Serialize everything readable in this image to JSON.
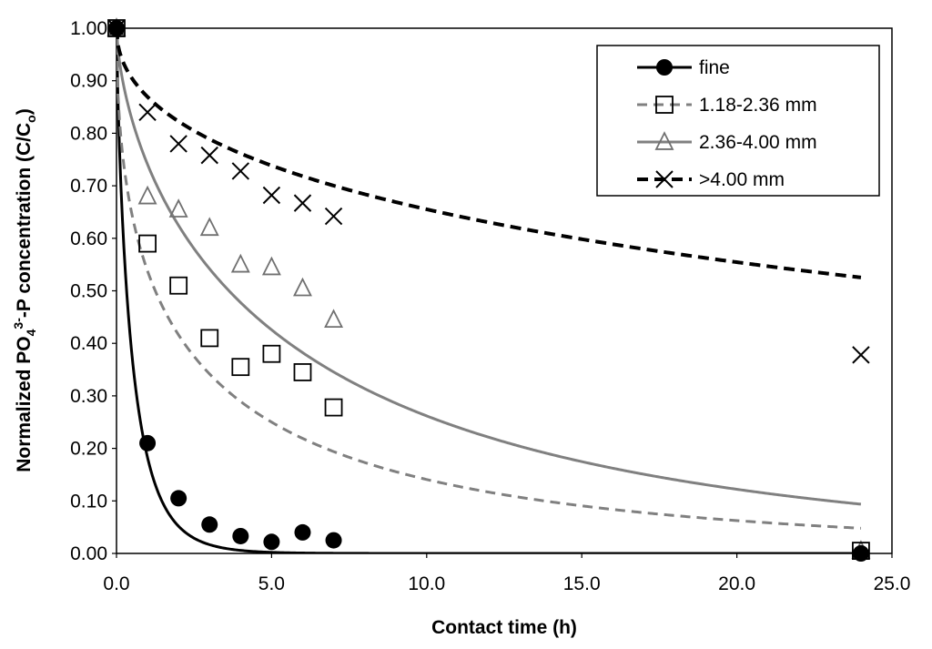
{
  "chart_data": {
    "type": "scatter",
    "title": "",
    "xlabel": "Contact time (h)",
    "ylabel": {
      "prefix": "Normalized PO",
      "sub": "4",
      "sup": "3-",
      "middle": "-P concentration (C/C",
      "sub2": "o",
      "suffix": ")"
    },
    "xlim": [
      0,
      25
    ],
    "ylim": [
      0,
      1
    ],
    "xticks": [
      "0.0",
      "5.0",
      "10.0",
      "15.0",
      "20.0",
      "25.0"
    ],
    "yticks": [
      "0.00",
      "0.10",
      "0.20",
      "0.30",
      "0.40",
      "0.50",
      "0.60",
      "0.70",
      "0.80",
      "0.90",
      "1.00"
    ],
    "grid": false,
    "legend_position": "top-right",
    "series": [
      {
        "name": "fine",
        "marker": "circle",
        "color": "#000000",
        "line_style": "solid",
        "x": [
          0,
          1,
          2,
          3,
          4,
          5,
          6,
          7,
          24
        ],
        "y": [
          1.0,
          0.21,
          0.105,
          0.055,
          0.033,
          0.022,
          0.04,
          0.025,
          0.0
        ],
        "fit_k": 1.7,
        "fit_p": 0.8
      },
      {
        "name": "1.18-2.36 mm",
        "marker": "square",
        "color": "#808080",
        "line_style": "dashed",
        "x": [
          0,
          1,
          2,
          3,
          4,
          5,
          6,
          7,
          24
        ],
        "y": [
          1.0,
          0.59,
          0.51,
          0.41,
          0.355,
          0.38,
          0.345,
          0.278,
          0.005
        ],
        "fit_k": 0.62,
        "fit_p": 0.5
      },
      {
        "name": "2.36-4.00 mm",
        "marker": "triangle",
        "color": "#808080",
        "line_style": "solid",
        "x": [
          0,
          1,
          2,
          3,
          4,
          5,
          6,
          7,
          24
        ],
        "y": [
          1.0,
          0.68,
          0.655,
          0.62,
          0.55,
          0.545,
          0.505,
          0.445,
          0.005
        ],
        "fit_k": 0.3,
        "fit_p": 0.65
      },
      {
        "name": ">4.00 mm",
        "marker": "x",
        "color": "#000000",
        "line_style": "dashed",
        "x": [
          0,
          1,
          2,
          3,
          4,
          5,
          6,
          7,
          24
        ],
        "y": [
          1.0,
          0.84,
          0.78,
          0.758,
          0.728,
          0.682,
          0.667,
          0.642,
          0.378
        ],
        "fit_k": 0.14,
        "fit_p": 0.48
      }
    ]
  }
}
